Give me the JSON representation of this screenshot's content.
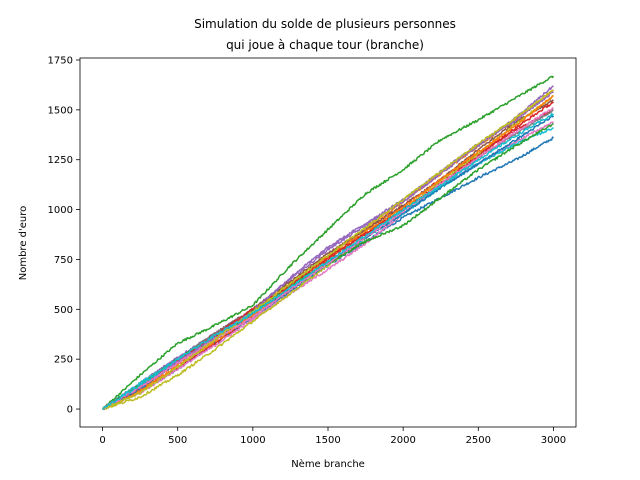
{
  "chart_data": {
    "type": "line",
    "title_lines": [
      "Simulation du solde de plusieurs personnes",
      "qui joue à chaque tour (branche)"
    ],
    "xlabel": "Nème branche",
    "ylabel": "Nombre d'euro",
    "xlim": [
      -150,
      3150
    ],
    "ylim": [
      -90,
      1760
    ],
    "xticks": [
      0,
      500,
      1000,
      1500,
      2000,
      2500,
      3000
    ],
    "yticks": [
      0,
      250,
      500,
      750,
      1000,
      1250,
      1500,
      1750
    ],
    "grid": false,
    "legend": "none",
    "series": [
      {
        "color": "#1f77b4",
        "x": [
          0,
          250,
          500,
          750,
          1000,
          1250,
          1500,
          1750,
          2000,
          2250,
          2500,
          2750,
          3000
        ],
        "y": [
          0,
          90,
          200,
          330,
          460,
          590,
          720,
          840,
          960,
          1060,
          1160,
          1250,
          1360
        ]
      },
      {
        "color": "#ff7f0e",
        "x": [
          0,
          250,
          500,
          750,
          1000,
          1250,
          1500,
          1750,
          2000,
          2250,
          2500,
          2750,
          3000
        ],
        "y": [
          0,
          100,
          230,
          360,
          490,
          630,
          770,
          900,
          1040,
          1180,
          1320,
          1450,
          1600
        ]
      },
      {
        "color": "#2ca02c",
        "x": [
          0,
          250,
          500,
          750,
          1000,
          1250,
          1500,
          1750,
          2000,
          2250,
          2500,
          2750,
          3000
        ],
        "y": [
          0,
          170,
          330,
          420,
          520,
          720,
          900,
          1080,
          1200,
          1350,
          1450,
          1560,
          1670
        ]
      },
      {
        "color": "#d62728",
        "x": [
          0,
          250,
          500,
          750,
          1000,
          1250,
          1500,
          1750,
          2000,
          2250,
          2500,
          2750,
          3000
        ],
        "y": [
          0,
          90,
          210,
          330,
          470,
          600,
          750,
          880,
          1020,
          1150,
          1280,
          1400,
          1500
        ]
      },
      {
        "color": "#9467bd",
        "x": [
          0,
          250,
          500,
          750,
          1000,
          1250,
          1500,
          1750,
          2000,
          2250,
          2500,
          2750,
          3000
        ],
        "y": [
          0,
          130,
          260,
          380,
          500,
          650,
          800,
          920,
          1040,
          1180,
          1320,
          1460,
          1620
        ]
      },
      {
        "color": "#8c564b",
        "x": [
          0,
          250,
          500,
          750,
          1000,
          1250,
          1500,
          1750,
          2000,
          2250,
          2500,
          2750,
          3000
        ],
        "y": [
          0,
          110,
          240,
          380,
          500,
          640,
          780,
          900,
          1020,
          1150,
          1300,
          1440,
          1550
        ]
      },
      {
        "color": "#e377c2",
        "x": [
          0,
          250,
          500,
          750,
          1000,
          1250,
          1500,
          1750,
          2000,
          2250,
          2500,
          2750,
          3000
        ],
        "y": [
          0,
          80,
          200,
          320,
          450,
          580,
          700,
          830,
          980,
          1120,
          1230,
          1340,
          1440
        ]
      },
      {
        "color": "#7f7f7f",
        "x": [
          0,
          250,
          500,
          750,
          1000,
          1250,
          1500,
          1750,
          2000,
          2250,
          2500,
          2750,
          3000
        ],
        "y": [
          0,
          110,
          250,
          380,
          470,
          620,
          740,
          860,
          1000,
          1130,
          1260,
          1380,
          1500
        ]
      },
      {
        "color": "#bcbd22",
        "x": [
          0,
          250,
          500,
          750,
          1000,
          1250,
          1500,
          1750,
          2000,
          2250,
          2500,
          2750,
          3000
        ],
        "y": [
          0,
          60,
          170,
          300,
          440,
          580,
          720,
          860,
          1000,
          1140,
          1280,
          1430,
          1570
        ]
      },
      {
        "color": "#17becf",
        "x": [
          0,
          250,
          500,
          750,
          1000,
          1250,
          1500,
          1750,
          2000,
          2250,
          2500,
          2750,
          3000
        ],
        "y": [
          0,
          130,
          250,
          360,
          480,
          610,
          730,
          860,
          980,
          1110,
          1230,
          1330,
          1410
        ]
      },
      {
        "color": "#1f77b4",
        "x": [
          0,
          250,
          500,
          750,
          1000,
          1250,
          1500,
          1750,
          2000,
          2250,
          2500,
          2750,
          3000
        ],
        "y": [
          0,
          100,
          230,
          350,
          480,
          600,
          730,
          860,
          980,
          1110,
          1230,
          1350,
          1470
        ]
      },
      {
        "color": "#ff7f0e",
        "x": [
          0,
          250,
          500,
          750,
          1000,
          1250,
          1500,
          1750,
          2000,
          2250,
          2500,
          2750,
          3000
        ],
        "y": [
          0,
          90,
          220,
          340,
          470,
          620,
          760,
          890,
          1010,
          1150,
          1290,
          1420,
          1570
        ]
      },
      {
        "color": "#2ca02c",
        "x": [
          0,
          250,
          500,
          750,
          1000,
          1250,
          1500,
          1750,
          2000,
          2250,
          2500,
          2750,
          3000
        ],
        "y": [
          0,
          120,
          250,
          360,
          490,
          620,
          730,
          840,
          920,
          1060,
          1200,
          1320,
          1430
        ]
      },
      {
        "color": "#d62728",
        "x": [
          0,
          250,
          500,
          750,
          1000,
          1250,
          1500,
          1750,
          2000,
          2250,
          2500,
          2750,
          3000
        ],
        "y": [
          0,
          110,
          240,
          370,
          500,
          620,
          760,
          880,
          1000,
          1130,
          1270,
          1410,
          1540
        ]
      },
      {
        "color": "#9467bd",
        "x": [
          0,
          250,
          500,
          750,
          1000,
          1250,
          1500,
          1750,
          2000,
          2250,
          2500,
          2750,
          3000
        ],
        "y": [
          0,
          110,
          240,
          360,
          490,
          660,
          810,
          930,
          1050,
          1190,
          1330,
          1450,
          1590
        ]
      },
      {
        "color": "#e377c2",
        "x": [
          0,
          250,
          500,
          750,
          1000,
          1250,
          1500,
          1750,
          2000,
          2250,
          2500,
          2750,
          3000
        ],
        "y": [
          0,
          110,
          230,
          350,
          460,
          600,
          730,
          860,
          990,
          1130,
          1260,
          1390,
          1510
        ]
      },
      {
        "color": "#bcbd22",
        "x": [
          0,
          250,
          500,
          750,
          1000,
          1250,
          1500,
          1750,
          2000,
          2250,
          2500,
          2750,
          3000
        ],
        "y": [
          0,
          80,
          210,
          350,
          490,
          630,
          770,
          910,
          1050,
          1190,
          1330,
          1460,
          1600
        ]
      },
      {
        "color": "#17becf",
        "x": [
          0,
          250,
          500,
          750,
          1000,
          1250,
          1500,
          1750,
          2000,
          2250,
          2500,
          2750,
          3000
        ],
        "y": [
          0,
          120,
          250,
          370,
          480,
          610,
          740,
          870,
          1000,
          1120,
          1250,
          1370,
          1480
        ]
      }
    ]
  }
}
